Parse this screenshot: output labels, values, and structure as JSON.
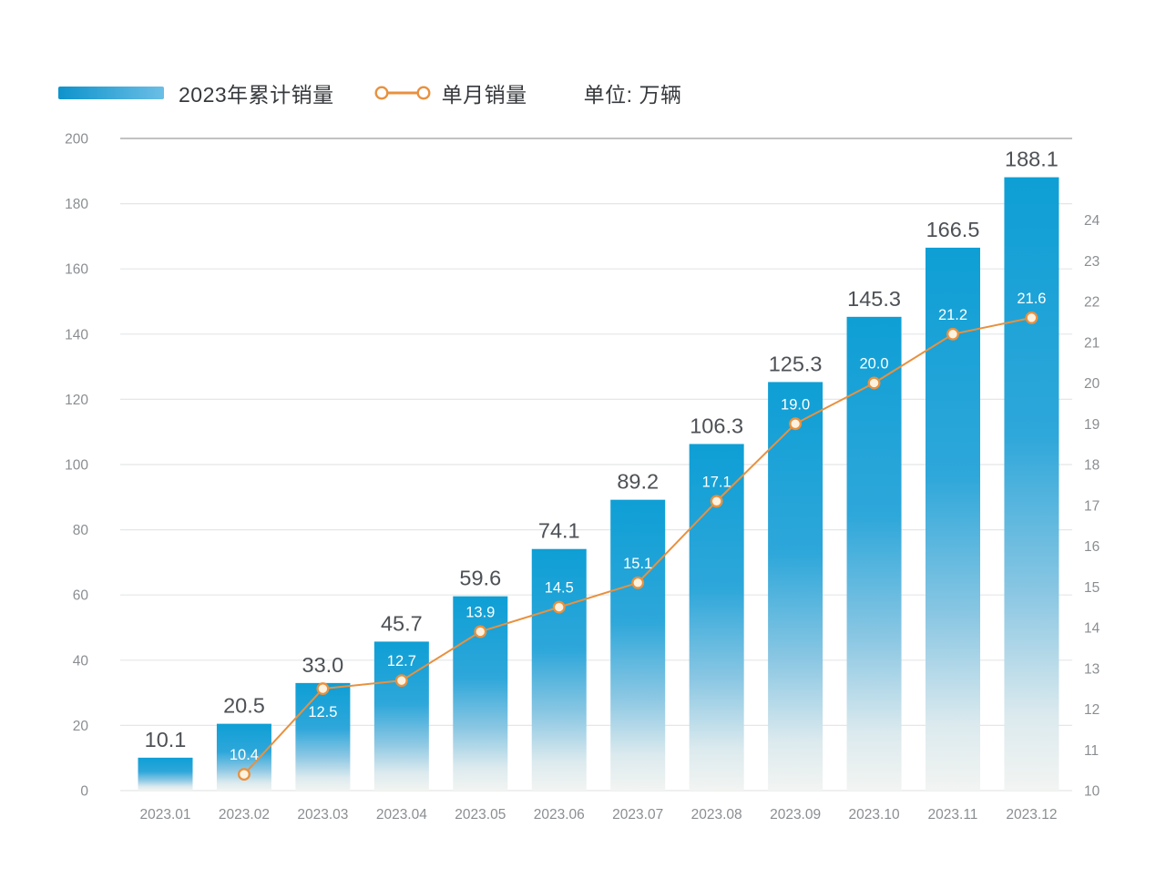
{
  "legend": {
    "bar_series_label": "2023年累计销量",
    "line_series_label": "单月销量"
  },
  "unit_label": "单位: 万辆",
  "colors": {
    "bar_top": "#0e9fd5",
    "bar_mid": "#2ea7da",
    "bar_fade": "#8bc7e3",
    "bar_pale": "#dceaee",
    "bar_bottom": "#f2f4f2",
    "line": "#e8913f",
    "point_fill": "#fcf2e0",
    "grid": "#e4e6e8",
    "grid_top": "#9a9da1",
    "axis_text": "#8a8e92",
    "bar_label_text": "#4d5156",
    "point_label_text": "#ffffff",
    "legend_swatch_start": "#0e93cc",
    "legend_swatch_end": "#6bbee5"
  },
  "chart_data": {
    "type": "bar",
    "title": "",
    "categories": [
      "2023.01",
      "2023.02",
      "2023.03",
      "2023.04",
      "2023.05",
      "2023.06",
      "2023.07",
      "2023.08",
      "2023.09",
      "2023.10",
      "2023.11",
      "2023.12"
    ],
    "series": [
      {
        "name": "2023年累计销量",
        "type": "bar",
        "axis": "left",
        "start_index": 0,
        "values": [
          10.1,
          20.5,
          33.0,
          45.7,
          59.6,
          74.1,
          89.2,
          106.3,
          125.3,
          145.3,
          166.5,
          188.1
        ]
      },
      {
        "name": "单月销量",
        "type": "line",
        "axis": "right",
        "start_index": 1,
        "values": [
          10.4,
          12.5,
          12.7,
          13.9,
          14.5,
          15.1,
          17.1,
          19.0,
          20.0,
          21.2,
          21.6
        ]
      }
    ],
    "left_axis": {
      "min": 0,
      "max": 200,
      "step": 20
    },
    "right_axis": {
      "min": 10,
      "max": 26,
      "label_min": 10,
      "label_max": 24,
      "step": 1
    },
    "unit": "万辆",
    "grid": "horizontal",
    "legend_position": "top-left"
  }
}
